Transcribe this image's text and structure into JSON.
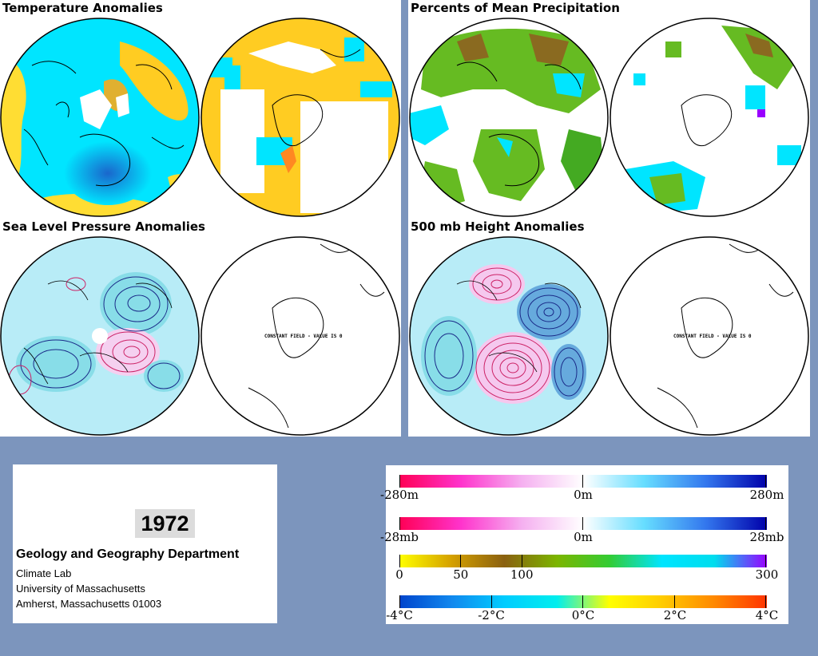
{
  "panels": {
    "temperature": {
      "title": "Temperature Anomalies"
    },
    "precipitation": {
      "title": "Percents of Mean Precipitation"
    },
    "slp": {
      "title": "Sea Level Pressure Anomalies",
      "constant_note": "CONSTANT FIELD - VALUE IS 0"
    },
    "height500": {
      "title": "500 mb Height Anomalies",
      "constant_note": "CONSTANT FIELD - VALUE IS 0"
    }
  },
  "info": {
    "year": "1972",
    "department": "Geology and Geography Department",
    "lines": [
      "Climate Lab",
      "University of Massachusetts",
      "Amherst, Massachusetts 01003"
    ]
  },
  "legends": [
    {
      "name": "height",
      "stops": [
        "#ff0055",
        "#ff33cc",
        "#f5b0f0",
        "#ffffff",
        "#66ddff",
        "#3377ee",
        "#0000aa"
      ],
      "labels": [
        {
          "text": "-280m",
          "pos": 0
        },
        {
          "text": "0m",
          "pos": 0.5
        },
        {
          "text": "280m",
          "pos": 1
        }
      ]
    },
    {
      "name": "pressure",
      "stops": [
        "#ff0055",
        "#ff33cc",
        "#f5b0f0",
        "#ffffff",
        "#66ddff",
        "#3377ee",
        "#0000aa"
      ],
      "labels": [
        {
          "text": "-28mb",
          "pos": 0
        },
        {
          "text": "0m",
          "pos": 0.5
        },
        {
          "text": "28mb",
          "pos": 1
        }
      ]
    },
    {
      "name": "precipitation",
      "stops": [
        "#ffff00",
        "#d4a000",
        "#8a6010",
        "#7cb500",
        "#33cc33",
        "#00e5ff",
        "#00ddee",
        "#9900ff"
      ],
      "labels": [
        {
          "text": "0",
          "pos": 0
        },
        {
          "text": "50",
          "pos": 0.167
        },
        {
          "text": "100",
          "pos": 0.333
        },
        {
          "text": "300",
          "pos": 1
        }
      ]
    },
    {
      "name": "temperature",
      "stops": [
        "#0044cc",
        "#1188ee",
        "#00ccff",
        "#00eeee",
        "#ffff00",
        "#ffcc00",
        "#ff8800",
        "#ff3300"
      ],
      "labels": [
        {
          "text": "-4°C",
          "pos": 0
        },
        {
          "text": "-2°C",
          "pos": 0.25
        },
        {
          "text": "0°C",
          "pos": 0.5
        },
        {
          "text": "2°C",
          "pos": 0.75
        },
        {
          "text": "4°C",
          "pos": 1
        }
      ]
    }
  ],
  "colors": {
    "background": "#7c95bd",
    "temp_fill": "#00e5ff",
    "temp_warm": "#ffcc00",
    "precip_green": "#66bb22",
    "anomaly_neg_contour": "#1a2a88",
    "anomaly_pos_contour": "#cc2266"
  }
}
